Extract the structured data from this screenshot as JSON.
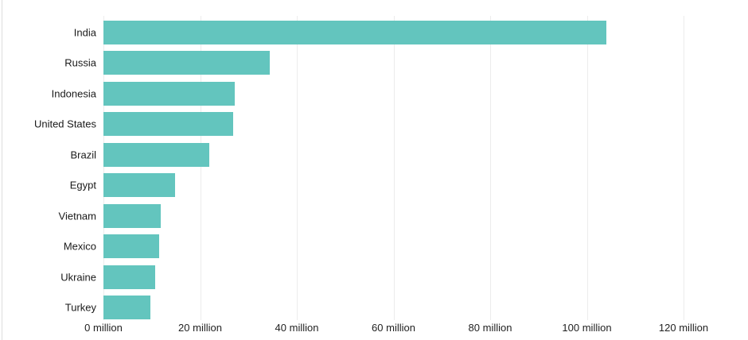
{
  "chart_data": {
    "type": "bar",
    "orientation": "horizontal",
    "title": "",
    "xlabel": "",
    "ylabel": "",
    "unit": "million",
    "xlim": [
      0,
      130
    ],
    "grid": "vertical",
    "legend": "none",
    "categories": [
      "India",
      "Russia",
      "Indonesia",
      "United States",
      "Brazil",
      "Egypt",
      "Vietnam",
      "Mexico",
      "Ukraine",
      "Turkey"
    ],
    "values": [
      104,
      34.4,
      27.2,
      26.8,
      21.9,
      14.8,
      11.9,
      11.5,
      10.7,
      9.7
    ],
    "x_ticks": [
      {
        "value": 0,
        "label": "0 million"
      },
      {
        "value": 20,
        "label": "20 million"
      },
      {
        "value": 40,
        "label": "40 million"
      },
      {
        "value": 60,
        "label": "60 million"
      },
      {
        "value": 80,
        "label": "80 million"
      },
      {
        "value": 100,
        "label": "100 million"
      },
      {
        "value": 120,
        "label": "120 million"
      }
    ],
    "colors": {
      "bar": "#63c5be",
      "gridline": "#ececec",
      "category_label": "#1a1a1a",
      "tick_label": "#222222",
      "frame_edge": "#dddddd",
      "background": "#ffffff"
    }
  }
}
